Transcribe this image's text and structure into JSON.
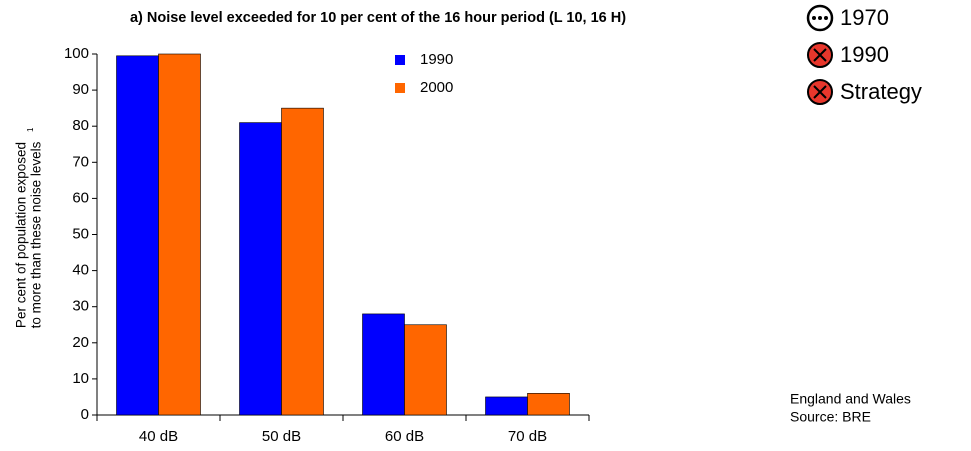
{
  "chart_data": {
    "type": "bar",
    "title": "a) Noise level exceeded for 10 per cent of the 16 hour period (L 10, 16 H)",
    "y_label": [
      "Per cent of population exposed",
      "to more than these noise levels"
    ],
    "y_label_footnote": "1",
    "categories": [
      "40 dB",
      "50 dB",
      "60 dB",
      "70 dB"
    ],
    "series": [
      {
        "name": "1990",
        "color": "#0000ff",
        "values": [
          99.5,
          81,
          28,
          5
        ]
      },
      {
        "name": "2000",
        "color": "#ff6600",
        "values": [
          100,
          85,
          25,
          6
        ]
      }
    ],
    "ylim": [
      0,
      100
    ],
    "yticks": [
      0,
      10,
      20,
      30,
      40,
      50,
      60,
      70,
      80,
      90,
      100
    ],
    "grid": false,
    "status_legend": [
      "1970",
      "1990",
      "Strategy"
    ],
    "notes": [
      "England and Wales",
      "Source: BRE"
    ]
  }
}
